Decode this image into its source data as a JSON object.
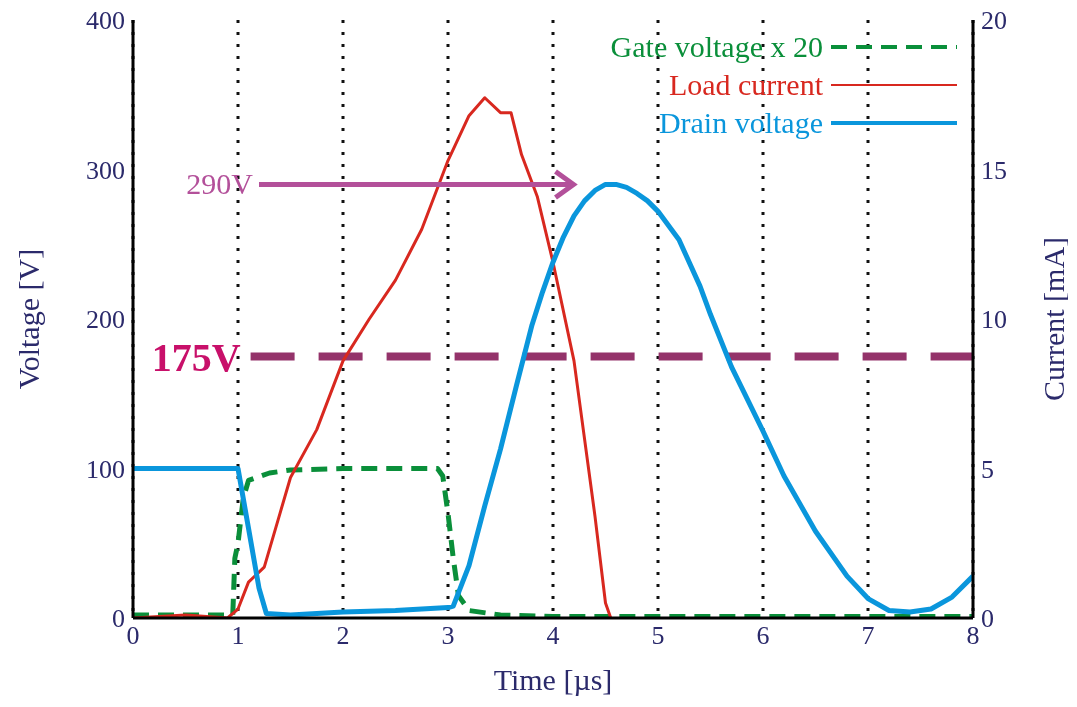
{
  "chart_data": {
    "type": "line",
    "xlabel": "Time [µs]",
    "ylabel": "Voltage [V]",
    "y2label": "Current [mA]",
    "xlim": [
      0,
      8
    ],
    "xticks": [
      0,
      1,
      2,
      3,
      4,
      5,
      6,
      7,
      8
    ],
    "ylim": [
      0,
      400
    ],
    "yticks": [
      0,
      100,
      200,
      300,
      400
    ],
    "y2lim": [
      0,
      20
    ],
    "y2ticks": [
      0,
      5,
      10,
      15,
      20
    ],
    "grid": true,
    "legend": "top right",
    "marker": "none",
    "series": [
      {
        "name": "Gate voltage x 20",
        "color": "#0a8f3a",
        "line_style": "dashed",
        "x": [
          0,
          0.5,
          0.95,
          0.97,
          1.0,
          1.05,
          1.1,
          1.3,
          1.5,
          2,
          2.5,
          2.9,
          2.95,
          3.0,
          3.05,
          3.1,
          3.2,
          3.5,
          4,
          5,
          6,
          7,
          8
        ],
        "values": [
          2,
          2,
          2,
          40,
          50,
          80,
          92,
          97,
          99,
          100,
          100,
          100,
          95,
          70,
          40,
          15,
          5,
          2,
          1,
          1,
          1,
          1,
          1
        ]
      },
      {
        "name": "Load current",
        "color": "#d8281f",
        "axis": "y2",
        "line_style": "solid",
        "x": [
          0,
          0.5,
          0.9,
          1.0,
          1.1,
          1.25,
          1.4,
          1.5,
          1.75,
          2,
          2.25,
          2.5,
          2.75,
          3,
          3.2,
          3.35,
          3.5,
          3.6,
          3.7,
          3.85,
          4,
          4.2,
          4.4,
          4.5,
          4.55
        ],
        "values": [
          0,
          0.1,
          0,
          0.3,
          1.2,
          1.7,
          3.5,
          4.7,
          6.3,
          8.6,
          10,
          11.3,
          13,
          15.3,
          16.8,
          17.4,
          16.9,
          16.9,
          15.5,
          14.1,
          11.9,
          8.6,
          3.4,
          0.5,
          0
        ]
      },
      {
        "name": "Drain voltage",
        "color": "#0a96dc",
        "line_style": "solid",
        "x": [
          0,
          0.5,
          1.0,
          1.1,
          1.2,
          1.27,
          1.5,
          2,
          2.5,
          3,
          3.05,
          3.2,
          3.35,
          3.5,
          3.65,
          3.8,
          3.9,
          4.0,
          4.1,
          4.2,
          4.3,
          4.4,
          4.5,
          4.6,
          4.7,
          4.8,
          4.9,
          5.0,
          5.2,
          5.4,
          5.5,
          5.7,
          6.0,
          6.2,
          6.5,
          6.8,
          7.0,
          7.2,
          7.4,
          7.6,
          7.8,
          8.0
        ],
        "values": [
          100,
          100,
          100,
          60,
          20,
          3,
          2,
          4,
          5,
          7,
          8,
          35,
          75,
          113,
          155,
          196,
          218,
          238,
          255,
          269,
          279,
          286,
          290,
          290,
          288,
          284,
          279,
          272,
          253,
          222,
          203,
          168,
          125,
          95,
          58,
          28,
          13,
          5,
          4,
          6,
          14,
          28
        ]
      }
    ],
    "ref_lines": [
      {
        "axis": "y",
        "value": 175,
        "label": "175V",
        "color": "#94336a",
        "line_style": "dashed"
      }
    ],
    "annotations": [
      "290V"
    ]
  }
}
